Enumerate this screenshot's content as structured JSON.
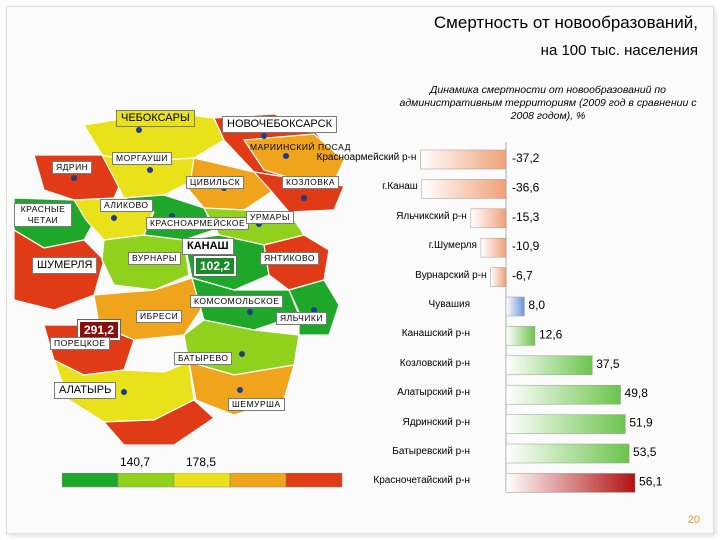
{
  "title": {
    "line1": "Смертность от новообразований,",
    "line2": "на 100 тыс. населения"
  },
  "chart_subtitle": "Динамика смертности от новообразований по административным территориям (2009 год в сравнении с 2008 годом), %",
  "map": {
    "labels": {
      "cheboksary": "ЧЕБОКСАРЫ",
      "novocheboksarsk": "НОВОЧЕБОКСАРСК",
      "mariinsky_posad": "МАРИИНСКИЙ ПОСАД",
      "yadrin": "ЯДРИН",
      "morgaushi": "МОРГАУШИ",
      "tsivilsk": "ЦИВИЛЬСК",
      "kozlovka": "КОЗЛОВКА",
      "krasnye_chetai": "КРАСНЫЕ ЧЕТАИ",
      "alikovo": "АЛИКОВО",
      "krasnoarmeyskoe": "КРАСНОАРМЕЙСКОЕ",
      "urmary": "УРМАРЫ",
      "shumerlya": "ШУМЕРЛЯ",
      "vurnary": "ВУРНАРЫ",
      "kanash": "КАНАШ",
      "yantikovo": "ЯНТИКОВО",
      "komsomolskoe": "КОМСОМОЛЬСКОЕ",
      "ibresi": "ИБРЕСИ",
      "yalchiki": "ЯЛЬЧИКИ",
      "poretskoe": "ПОРЕЦКОЕ",
      "batyrevo": "БАТЫРЕВО",
      "alatyr": "АЛАТЫРЬ",
      "shemursha": "ШЕМУРША"
    },
    "values": {
      "min": "102,2",
      "max": "291,2"
    },
    "scale": {
      "low": "140,7",
      "high": "178,5",
      "colors": [
        "#1da82a",
        "#8fd11c",
        "#e9e21a",
        "#f0a41c",
        "#e03b16"
      ]
    }
  },
  "chart_data": {
    "type": "bar",
    "orientation": "horizontal",
    "title": "Динамика смертности от новообразований по административным территориям (2009 год в сравнении с 2008 годом), %",
    "categories": [
      "Красноармейский р-н",
      "г.Канаш",
      "Яльчикский р-н",
      "г.Шумерля",
      "Вурнарский р-н",
      "Чувашия",
      "Канашский р-н",
      "Козловский р-н",
      "Алатырский р-н",
      "Ядринский р-н",
      "Батыревский р-н",
      "Красночетайский р-н"
    ],
    "values": [
      -37.2,
      -36.6,
      -15.3,
      -10.9,
      -6.7,
      8.0,
      12.6,
      37.5,
      49.8,
      51.9,
      53.5,
      56.1
    ],
    "value_labels": [
      "-37,2",
      "-36,6",
      "-15,3",
      "-10,9",
      "-6,7",
      "8,0",
      "12,6",
      "37,5",
      "49,8",
      "51,9",
      "53,5",
      "56,1"
    ],
    "colors": {
      "decrease": "#f0a078",
      "chuvashia": "#6f93d8",
      "increase": "#6cc44c",
      "max": "#b01212"
    }
  },
  "page_number": "20"
}
